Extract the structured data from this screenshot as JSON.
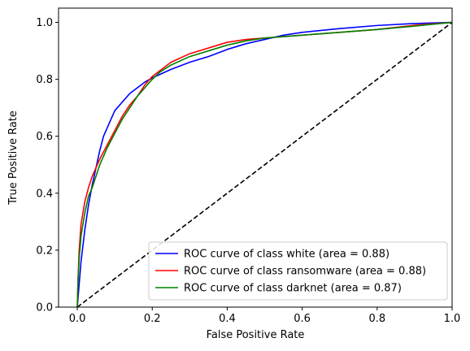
{
  "chart_data": {
    "type": "line",
    "xlabel": "False Positive Rate",
    "ylabel": "True Positive Rate",
    "xlim": [
      -0.05,
      1.0
    ],
    "ylim": [
      0.0,
      1.05
    ],
    "xticks": [
      "0.0",
      "0.2",
      "0.4",
      "0.6",
      "0.8",
      "1.0"
    ],
    "yticks": [
      "0.0",
      "0.2",
      "0.4",
      "0.6",
      "0.8",
      "1.0"
    ],
    "grid": false,
    "legend_position": "lower-right",
    "series": [
      {
        "name": "ROC curve of class white (area = 0.88)",
        "color": "#0000ff",
        "points": [
          [
            0.0,
            0.0
          ],
          [
            0.005,
            0.08
          ],
          [
            0.01,
            0.16
          ],
          [
            0.02,
            0.27
          ],
          [
            0.03,
            0.36
          ],
          [
            0.04,
            0.43
          ],
          [
            0.05,
            0.49
          ],
          [
            0.06,
            0.55
          ],
          [
            0.07,
            0.6
          ],
          [
            0.08,
            0.63
          ],
          [
            0.09,
            0.66
          ],
          [
            0.1,
            0.69
          ],
          [
            0.12,
            0.72
          ],
          [
            0.14,
            0.75
          ],
          [
            0.16,
            0.77
          ],
          [
            0.18,
            0.79
          ],
          [
            0.2,
            0.805
          ],
          [
            0.25,
            0.835
          ],
          [
            0.3,
            0.86
          ],
          [
            0.35,
            0.88
          ],
          [
            0.4,
            0.905
          ],
          [
            0.45,
            0.925
          ],
          [
            0.5,
            0.94
          ],
          [
            0.55,
            0.955
          ],
          [
            0.6,
            0.965
          ],
          [
            0.7,
            0.978
          ],
          [
            0.8,
            0.989
          ],
          [
            0.9,
            0.996
          ],
          [
            1.0,
            1.0
          ]
        ]
      },
      {
        "name": "ROC curve of class ransomware (area = 0.88)",
        "color": "#ff0000",
        "points": [
          [
            0.0,
            0.0
          ],
          [
            0.002,
            0.1
          ],
          [
            0.005,
            0.2
          ],
          [
            0.01,
            0.29
          ],
          [
            0.02,
            0.37
          ],
          [
            0.03,
            0.42
          ],
          [
            0.04,
            0.46
          ],
          [
            0.05,
            0.49
          ],
          [
            0.06,
            0.52
          ],
          [
            0.08,
            0.57
          ],
          [
            0.1,
            0.62
          ],
          [
            0.12,
            0.67
          ],
          [
            0.14,
            0.71
          ],
          [
            0.16,
            0.74
          ],
          [
            0.18,
            0.78
          ],
          [
            0.2,
            0.81
          ],
          [
            0.22,
            0.83
          ],
          [
            0.25,
            0.86
          ],
          [
            0.3,
            0.89
          ],
          [
            0.35,
            0.91
          ],
          [
            0.4,
            0.93
          ],
          [
            0.45,
            0.94
          ],
          [
            0.5,
            0.945
          ],
          [
            0.6,
            0.955
          ],
          [
            0.7,
            0.965
          ],
          [
            0.8,
            0.975
          ],
          [
            0.9,
            0.99
          ],
          [
            1.0,
            1.0
          ]
        ]
      },
      {
        "name": "ROC curve of class darknet (area = 0.87)",
        "color": "#008000",
        "points": [
          [
            0.0,
            0.0
          ],
          [
            0.002,
            0.09
          ],
          [
            0.005,
            0.17
          ],
          [
            0.01,
            0.25
          ],
          [
            0.02,
            0.33
          ],
          [
            0.03,
            0.39
          ],
          [
            0.04,
            0.42
          ],
          [
            0.05,
            0.46
          ],
          [
            0.06,
            0.5
          ],
          [
            0.08,
            0.56
          ],
          [
            0.1,
            0.61
          ],
          [
            0.12,
            0.66
          ],
          [
            0.14,
            0.7
          ],
          [
            0.16,
            0.74
          ],
          [
            0.18,
            0.77
          ],
          [
            0.2,
            0.8
          ],
          [
            0.22,
            0.825
          ],
          [
            0.25,
            0.85
          ],
          [
            0.3,
            0.88
          ],
          [
            0.35,
            0.9
          ],
          [
            0.4,
            0.92
          ],
          [
            0.45,
            0.935
          ],
          [
            0.5,
            0.945
          ],
          [
            0.6,
            0.955
          ],
          [
            0.7,
            0.965
          ],
          [
            0.8,
            0.975
          ],
          [
            0.9,
            0.987
          ],
          [
            1.0,
            1.0
          ]
        ]
      },
      {
        "name": "",
        "color": "#000000",
        "dashed": true,
        "points": [
          [
            0.0,
            0.0
          ],
          [
            1.0,
            1.0
          ]
        ]
      }
    ]
  }
}
